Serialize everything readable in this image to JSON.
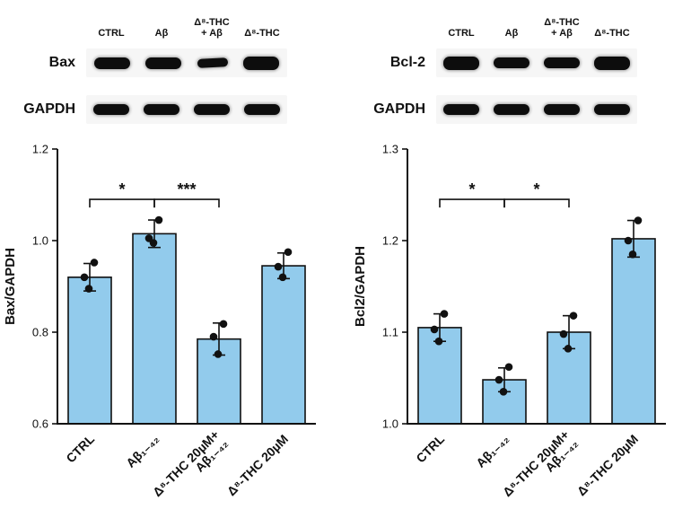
{
  "figure": {
    "background": "#ffffff"
  },
  "blots": [
    {
      "lane_labels": [
        [
          "CTRL"
        ],
        [
          "Aβ"
        ],
        [
          "Δ⁸-THC",
          "+ Aβ"
        ],
        [
          "Δ⁸-THC"
        ]
      ],
      "rows": [
        {
          "label": "Bax"
        },
        {
          "label": "GAPDH"
        }
      ]
    },
    {
      "lane_labels": [
        [
          "CTRL"
        ],
        [
          "Aβ"
        ],
        [
          "Δ⁸-THC",
          "+ Aβ"
        ],
        [
          "Δ⁸-THC"
        ]
      ],
      "rows": [
        {
          "label": "Bcl-2"
        },
        {
          "label": "GAPDH"
        }
      ]
    }
  ],
  "chart_data": [
    {
      "type": "bar",
      "title": "",
      "xlabel": "",
      "ylabel": "Bax/GAPDH",
      "ylim": [
        0.6,
        1.2
      ],
      "yticks": [
        0.6,
        0.8,
        1.0,
        1.2
      ],
      "grid": false,
      "legend": null,
      "bar_color": "#92CBEC",
      "categories": [
        [
          "CTRL"
        ],
        [
          "Aβ₁₋₄₂"
        ],
        [
          "Δ⁸-THC 20µM+",
          "Aβ₁₋₄₂"
        ],
        [
          "Δ⁸-THC 20µM"
        ]
      ],
      "values": [
        0.92,
        1.015,
        0.785,
        0.945
      ],
      "errors": [
        0.03,
        0.03,
        0.035,
        0.028
      ],
      "points": [
        [
          0.895,
          0.92,
          0.952
        ],
        [
          0.995,
          1.005,
          1.045
        ],
        [
          0.752,
          0.79,
          0.818
        ],
        [
          0.92,
          0.943,
          0.975
        ]
      ],
      "significance": [
        {
          "from": 0,
          "to": 1,
          "label": "*",
          "y": 1.09
        },
        {
          "from": 1,
          "to": 2,
          "label": "***",
          "y": 1.09
        }
      ]
    },
    {
      "type": "bar",
      "title": "",
      "xlabel": "",
      "ylabel": "Bcl2/GAPDH",
      "ylim": [
        1.0,
        1.3
      ],
      "yticks": [
        1.0,
        1.1,
        1.2,
        1.3
      ],
      "grid": false,
      "legend": null,
      "bar_color": "#92CBEC",
      "categories": [
        [
          "CTRL"
        ],
        [
          "Aβ₁₋₄₂"
        ],
        [
          "Δ⁸-THC 20µM+",
          "Aβ₁₋₄₂"
        ],
        [
          "Δ⁸-THC 20µM"
        ]
      ],
      "values": [
        1.105,
        1.048,
        1.1,
        1.202
      ],
      "errors": [
        0.015,
        0.013,
        0.018,
        0.02
      ],
      "points": [
        [
          1.09,
          1.103,
          1.12
        ],
        [
          1.035,
          1.048,
          1.062
        ],
        [
          1.082,
          1.098,
          1.118
        ],
        [
          1.185,
          1.2,
          1.222
        ]
      ],
      "significance": [
        {
          "from": 0,
          "to": 1,
          "label": "*",
          "y": 1.245
        },
        {
          "from": 1,
          "to": 2,
          "label": "*",
          "y": 1.245
        }
      ]
    }
  ]
}
